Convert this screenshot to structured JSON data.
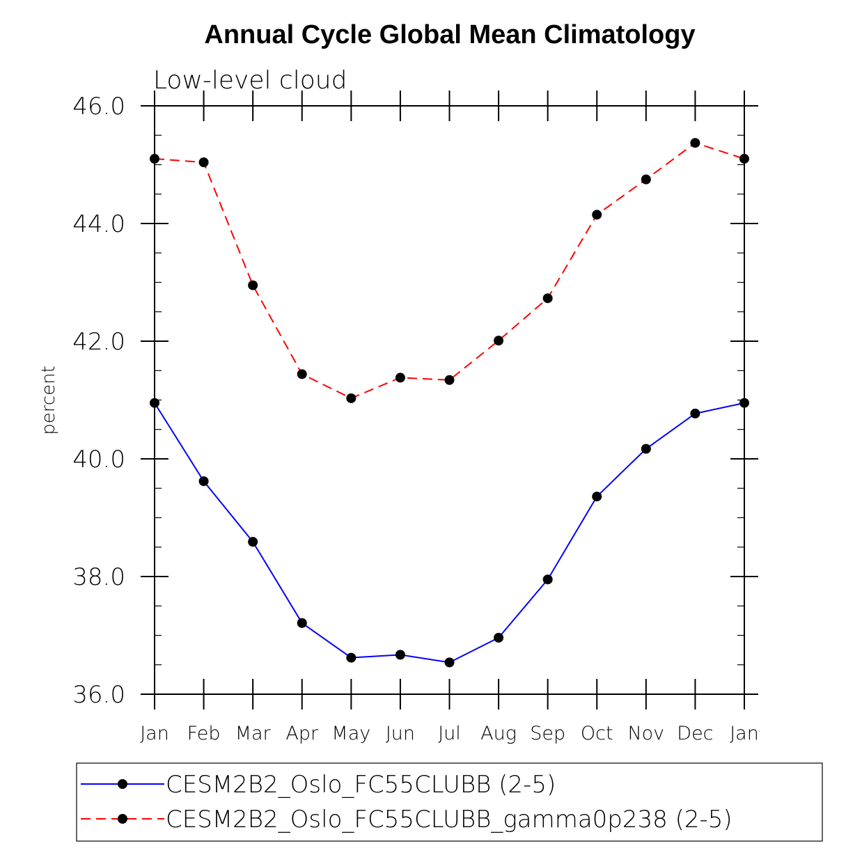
{
  "chart_data": {
    "type": "line",
    "title": "Annual Cycle Global Mean Climatology",
    "subtitle": "Low-level cloud",
    "xlabel": "",
    "ylabel": "percent",
    "ylim": [
      36.0,
      46.0
    ],
    "yticks": [
      "36.0",
      "38.0",
      "40.0",
      "42.0",
      "44.0",
      "46.0"
    ],
    "categories": [
      "Jan",
      "Feb",
      "Mar",
      "Apr",
      "May",
      "Jun",
      "Jul",
      "Aug",
      "Sep",
      "Oct",
      "Nov",
      "Dec",
      "Jan"
    ],
    "legend_placement": "bottom",
    "series": [
      {
        "name": "CESM2B2_Oslo_FC55CLUBB (2-5)",
        "color": "#0000ff",
        "dash": "solid",
        "values": [
          40.95,
          39.62,
          38.59,
          37.21,
          36.62,
          36.67,
          36.54,
          36.96,
          37.95,
          39.36,
          40.17,
          40.77,
          40.95
        ]
      },
      {
        "name": "CESM2B2_Oslo_FC55CLUBB_gamma0p238 (2-5)",
        "color": "#ff0000",
        "dash": "dashed",
        "values": [
          45.1,
          45.04,
          42.95,
          41.44,
          41.03,
          41.38,
          41.34,
          42.01,
          42.73,
          44.15,
          44.75,
          45.37,
          45.1
        ]
      }
    ]
  }
}
